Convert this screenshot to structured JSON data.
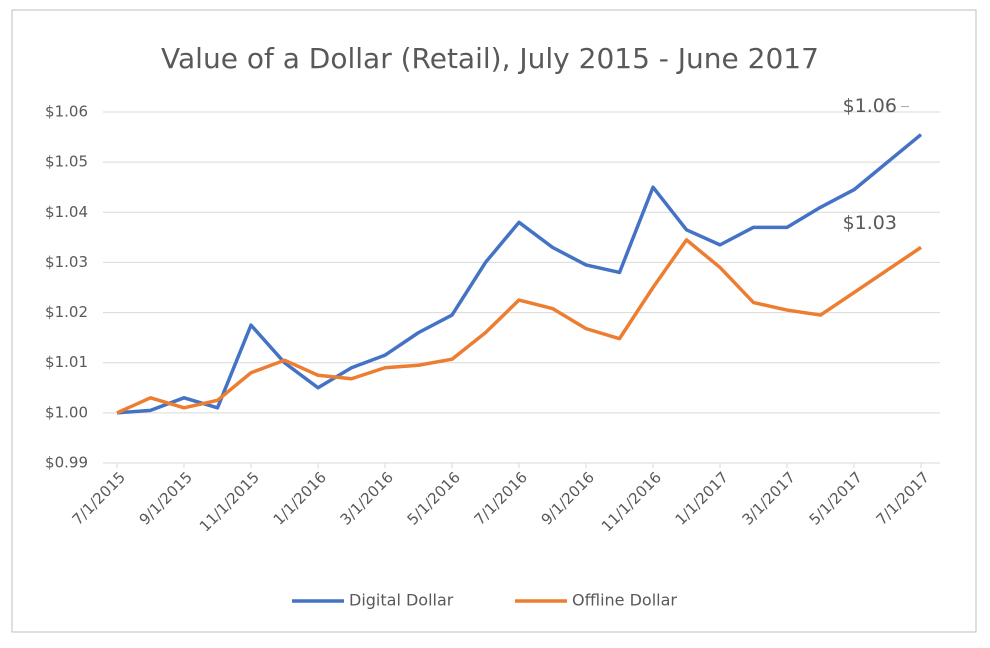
{
  "chart_data": {
    "type": "line",
    "title": "Value of a Dollar (Retail), July 2015 - June 2017",
    "categories": [
      "7/1/2015",
      null,
      "9/1/2015",
      null,
      "11/1/2015",
      null,
      "1/1/2016",
      null,
      "3/1/2016",
      null,
      "5/1/2016",
      null,
      "7/1/2016",
      null,
      "9/1/2016",
      null,
      "11/1/2016",
      null,
      "1/1/2017",
      null,
      "3/1/2017",
      null,
      "5/1/2017",
      null,
      "7/1/2017"
    ],
    "series": [
      {
        "name": "Digital Dollar",
        "color": "#4472c4",
        "values": [
          1.0,
          1.0005,
          1.003,
          1.001,
          1.0175,
          1.01,
          1.005,
          1.009,
          1.0115,
          1.016,
          1.0195,
          1.03,
          1.038,
          1.033,
          1.0295,
          1.028,
          1.045,
          1.0365,
          1.0335,
          1.037,
          1.037,
          1.041,
          1.0445,
          1.05,
          1.0555
        ],
        "value_labels": [
          null,
          null,
          null,
          null,
          null,
          null,
          null,
          null,
          null,
          null,
          null,
          null,
          null,
          null,
          null,
          null,
          null,
          null,
          null,
          null,
          null,
          null,
          null,
          null,
          "$1.06"
        ]
      },
      {
        "name": "Offline Dollar",
        "color": "#ed7d31",
        "values": [
          1.0,
          1.003,
          1.001,
          1.0025,
          1.008,
          1.0105,
          1.0075,
          1.0068,
          1.009,
          1.0095,
          1.0107,
          1.016,
          1.0225,
          1.0208,
          1.0168,
          1.0148,
          1.025,
          1.0345,
          1.029,
          1.022,
          1.0205,
          1.0195,
          1.024,
          1.0285,
          1.033
        ],
        "value_labels": [
          null,
          null,
          null,
          null,
          null,
          null,
          null,
          null,
          null,
          null,
          null,
          null,
          null,
          null,
          null,
          null,
          null,
          null,
          null,
          null,
          null,
          null,
          null,
          null,
          "$1.03"
        ]
      }
    ],
    "ylim": [
      0.99,
      1.06
    ],
    "yticks": [
      {
        "value": 0.99,
        "label": "$0.99"
      },
      {
        "value": 1.0,
        "label": "$1.00"
      },
      {
        "value": 1.01,
        "label": "$1.01"
      },
      {
        "value": 1.02,
        "label": "$1.02"
      },
      {
        "value": 1.03,
        "label": "$1.03"
      },
      {
        "value": 1.04,
        "label": "$1.04"
      },
      {
        "value": 1.05,
        "label": "$1.05"
      },
      {
        "value": 1.06,
        "label": "$1.06"
      }
    ],
    "grid": true,
    "legend": "bottom"
  }
}
